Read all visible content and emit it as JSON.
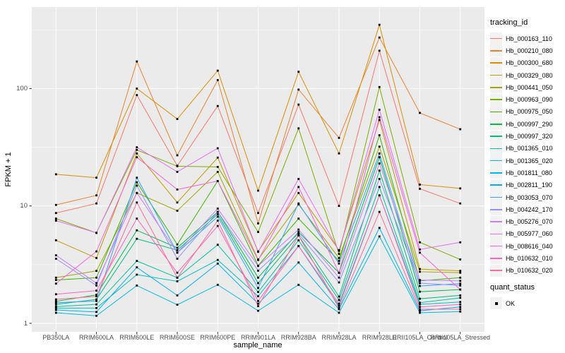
{
  "chart_data": {
    "type": "line",
    "title": "",
    "xlabel": "sample_name",
    "ylabel": "FPKM + 1",
    "y_scale": "log10",
    "y_tick_labels": [
      "100",
      "10",
      "1"
    ],
    "y_tick_values": [
      100,
      10,
      1
    ],
    "y_minor_gridlines": [
      3.1623,
      31.623,
      316.23
    ],
    "ylim": [
      1,
      490
    ],
    "legend_position": "right",
    "panel_bg": "#EBEBEB",
    "gridline_color": "#FFFFFF",
    "axis_text_color": "#4D4D4D",
    "point_color": "#000000",
    "categories": [
      "PB350LA",
      "RRIM600LA",
      "RRIM600LE",
      "RRIM600SE",
      "RRIM600PE",
      "RRIM901LA",
      "RRIM928BA",
      "RRIM928LA",
      "RRIM928LE",
      "RRII105LA_Control",
      "RRII105LA_Stressed"
    ],
    "series": [
      {
        "name": "Hb_000163_110",
        "color": "#F8766D",
        "values": [
          8.7,
          10.5,
          88,
          22,
          71,
          8.7,
          73,
          10,
          210,
          14,
          10.5
        ]
      },
      {
        "name": "Hb_000210_080",
        "color": "#EA8331",
        "values": [
          10.2,
          12.3,
          170,
          27,
          118,
          7.1,
          98,
          38,
          272,
          62,
          45
        ]
      },
      {
        "name": "Hb_000300_680",
        "color": "#D89000",
        "values": [
          18.6,
          17.4,
          100,
          55,
          142,
          13.5,
          139,
          28,
          349,
          15.2,
          14.1
        ]
      },
      {
        "name": "Hb_000329_080",
        "color": "#C09B00",
        "values": [
          5.1,
          3.6,
          28,
          10.7,
          25.8,
          4.1,
          12.9,
          4.2,
          54,
          2.9,
          2.8
        ]
      },
      {
        "name": "Hb_000441_050",
        "color": "#A3A500",
        "values": [
          2.45,
          2.8,
          12.9,
          9.1,
          19.5,
          3.5,
          10.3,
          3.6,
          32,
          2.75,
          2.7
        ]
      },
      {
        "name": "Hb_000963_090",
        "color": "#7CAE00",
        "values": [
          7.8,
          5.9,
          30,
          21.8,
          21.5,
          6.0,
          45.8,
          3.9,
          103,
          4.9,
          3.5
        ]
      },
      {
        "name": "Hb_000975_050",
        "color": "#39B600",
        "values": [
          2.34,
          2.45,
          15.9,
          4.7,
          16.3,
          3.1,
          7.8,
          3.4,
          40,
          2.3,
          2.45
        ]
      },
      {
        "name": "Hb_000997_290",
        "color": "#00BB4E",
        "values": [
          1.54,
          1.75,
          6.2,
          4.4,
          8.9,
          2.45,
          6.0,
          2.7,
          26,
          1.86,
          1.94
        ]
      },
      {
        "name": "Hb_000997_320",
        "color": "#00BF7D",
        "values": [
          1.45,
          1.6,
          5.25,
          4.2,
          8.5,
          2.2,
          5.6,
          1.69,
          20,
          1.62,
          1.73
        ]
      },
      {
        "name": "Hb_001365_010",
        "color": "#00C1A3",
        "values": [
          1.39,
          1.45,
          3.4,
          2.45,
          4.67,
          1.85,
          5.1,
          1.58,
          14.5,
          1.5,
          1.65
        ]
      },
      {
        "name": "Hb_001365_020",
        "color": "#00BFC4",
        "values": [
          1.35,
          1.35,
          2.6,
          2.28,
          3.47,
          1.7,
          4.56,
          1.41,
          12.3,
          1.45,
          1.52
        ]
      },
      {
        "name": "Hb_001811_080",
        "color": "#00BAE0",
        "values": [
          1.23,
          1.16,
          2.1,
          1.44,
          2.13,
          1.28,
          2.13,
          1.23,
          5.5,
          1.23,
          1.26
        ]
      },
      {
        "name": "Hb_002811_190",
        "color": "#00B0F6",
        "values": [
          1.3,
          1.25,
          3.0,
          1.73,
          3.23,
          1.47,
          3.3,
          1.32,
          6.5,
          1.28,
          1.38
        ]
      },
      {
        "name": "Hb_003053_070",
        "color": "#35A2FF",
        "values": [
          1.5,
          1.55,
          17.4,
          4.0,
          8.1,
          2.0,
          10.5,
          3.23,
          28,
          2.08,
          2.18
        ]
      },
      {
        "name": "Hb_004242_170",
        "color": "#9590FF",
        "values": [
          3.55,
          2.1,
          14.9,
          3.55,
          8.9,
          2.81,
          5.8,
          2.23,
          17,
          2.2,
          2.1
        ]
      },
      {
        "name": "Hb_005276_070",
        "color": "#C77CFF",
        "values": [
          3.8,
          2.2,
          12.9,
          4.0,
          9.5,
          3.08,
          6.3,
          2.45,
          23,
          2.34,
          2.3
        ]
      },
      {
        "name": "Hb_005977_060",
        "color": "#E76BF3",
        "values": [
          7.5,
          5.9,
          31.6,
          19.5,
          31,
          4.06,
          17.0,
          4.15,
          66,
          4.26,
          4.9
        ]
      },
      {
        "name": "Hb_008616_040",
        "color": "#FA62DB",
        "values": [
          2.18,
          4.1,
          26,
          13.8,
          16.3,
          3.46,
          14.5,
          2.69,
          57,
          4.0,
          1.94
        ]
      },
      {
        "name": "Hb_010632_010",
        "color": "#FF62BC",
        "values": [
          1.77,
          1.9,
          7.8,
          2.7,
          6.75,
          1.55,
          4.56,
          1.47,
          12.3,
          1.38,
          1.45
        ]
      },
      {
        "name": "Hb_010632_020",
        "color": "#FF6A98",
        "values": [
          1.6,
          1.7,
          10.7,
          2.45,
          7.5,
          1.4,
          5.6,
          1.35,
          8.9,
          1.32,
          1.32
        ]
      }
    ],
    "legend": {
      "title": "tracking_id"
    },
    "quant_legend": {
      "title": "quant_status",
      "items": [
        {
          "label": "OK",
          "marker": "black-square"
        }
      ]
    }
  }
}
